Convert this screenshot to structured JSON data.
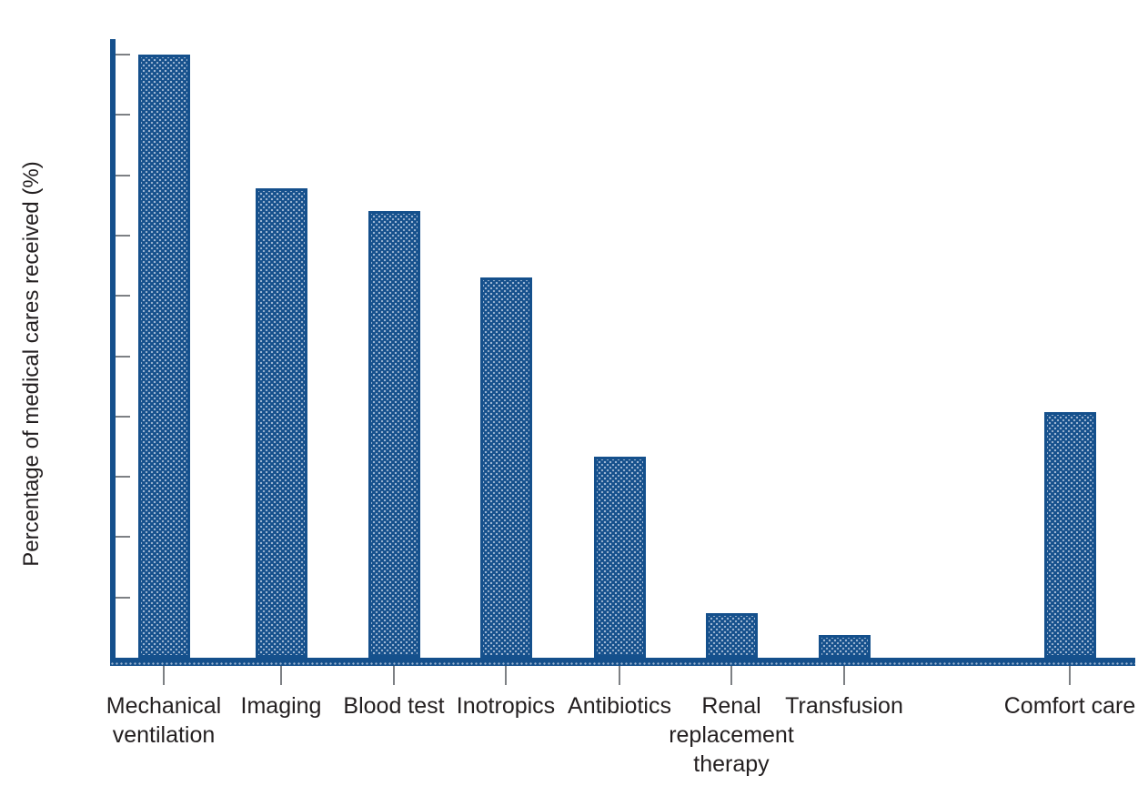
{
  "chart_data": {
    "type": "bar",
    "title": "",
    "xlabel": "",
    "ylabel": "Percentage of medical cares received (%)",
    "ylim": [
      0,
      100
    ],
    "yticks": [
      0,
      10,
      20,
      30,
      40,
      50,
      60,
      70,
      80,
      90,
      100
    ],
    "grid": false,
    "legend": null,
    "categories": [
      "Mechanical ventilation",
      "Imaging",
      "Blood test",
      "Inotropics",
      "Antibiotics",
      "Renal replacement therapy",
      "Transfusion",
      "Comfort care"
    ],
    "category_label_lines": [
      [
        "Mechanical",
        "ventilation"
      ],
      [
        "Imaging"
      ],
      [
        "Blood test"
      ],
      [
        "Inotropics"
      ],
      [
        "Antibiotics"
      ],
      [
        "Renal",
        "replacement",
        "therapy"
      ],
      [
        "Transfusion"
      ],
      [
        "Comfort care"
      ]
    ],
    "values": [
      100.0,
      77.8,
      74.1,
      63.0,
      33.3,
      7.4,
      3.7,
      40.7
    ],
    "value_labels": [
      "100.0",
      "77.8",
      "74.1",
      "63.0",
      "33.3",
      "7.4",
      "3.7",
      "40.7"
    ],
    "slots": [
      0,
      1,
      2,
      3,
      4,
      5,
      6,
      8
    ],
    "layout_hints": {
      "value_labels_above_bars": true,
      "empty_slot_before_last_bar": true,
      "bar_fill_style": "dark blue with light stipple dots",
      "legend_position": "none"
    }
  },
  "colors": {
    "bar_blue": "#15508c",
    "stipple_dot": "#9fb6d2",
    "tick_gray": "#7d8084",
    "text": "#231f20",
    "background": "#ffffff"
  }
}
